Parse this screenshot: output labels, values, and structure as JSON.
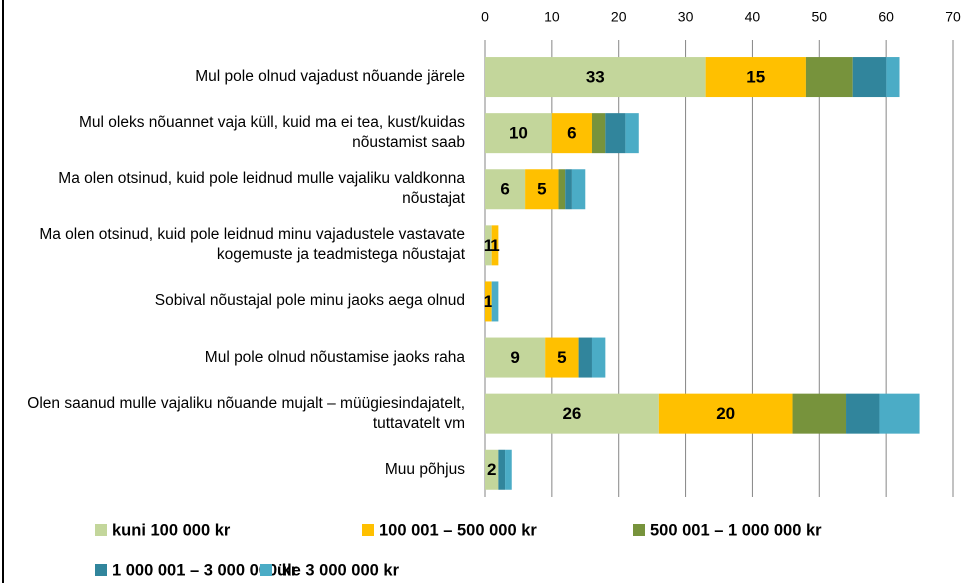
{
  "chart_data": {
    "type": "bar",
    "orientation": "horizontal",
    "stacked": true,
    "categories": [
      "Mul pole olnud vajadust nõuande järele",
      "Mul oleks nõuannet vaja küll, kuid ma ei tea, kust/kuidas nõustamist saab",
      "Ma olen otsinud, kuid pole leidnud mulle vajaliku valdkonna nõustajat",
      "Ma olen otsinud, kuid pole leidnud minu vajadustele vastavate kogemuste ja teadmistega nõustajat",
      "Sobival nõustajal pole minu jaoks aega olnud",
      "Mul pole olnud nõustamise jaoks raha",
      "Olen saanud mulle vajaliku nõuande mujalt – müügiesindajatelt, tuttavatelt vm",
      "Muu põhjus"
    ],
    "series": [
      {
        "name": "kuni 100 000 kr",
        "color": "#c3d69b",
        "labels": true,
        "values": [
          33,
          10,
          6,
          1,
          0,
          9,
          26,
          2
        ]
      },
      {
        "name": "100 001 – 500 000 kr",
        "color": "#ffc000",
        "labels": true,
        "values": [
          15,
          6,
          5,
          1,
          1,
          5,
          20,
          0
        ]
      },
      {
        "name": "500 001 – 1 000 000 kr",
        "color": "#77933c",
        "labels": false,
        "values": [
          7,
          2,
          1,
          0,
          0,
          0,
          8,
          0
        ]
      },
      {
        "name": "1 000 001 – 3 000 000 kr",
        "color": "#31859c",
        "labels": false,
        "values": [
          5,
          3,
          1,
          0,
          0,
          2,
          5,
          1
        ]
      },
      {
        "name": "üle 3 000 000 kr",
        "color": "#4bacc6",
        "labels": false,
        "values": [
          2,
          2,
          2,
          0,
          1,
          2,
          6,
          1
        ]
      }
    ],
    "xlim": [
      0,
      70
    ],
    "xticks": [
      0,
      10,
      20,
      30,
      40,
      50,
      60,
      70
    ],
    "grid": true,
    "legend": "bottom"
  }
}
